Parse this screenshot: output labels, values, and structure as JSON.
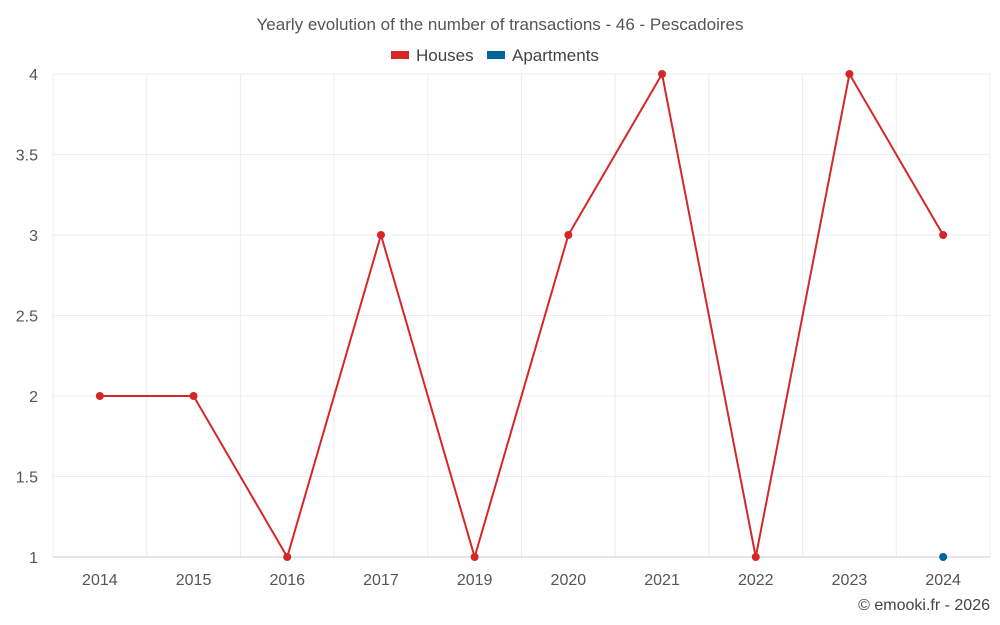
{
  "chart_data": {
    "type": "line",
    "title": "Yearly evolution of the number of transactions - 46 - Pescadoires",
    "x": [
      "2014",
      "2015",
      "2016",
      "2017",
      "2019",
      "2020",
      "2021",
      "2022",
      "2023",
      "2024"
    ],
    "series": [
      {
        "name": "Houses",
        "color": "#d62728",
        "values": [
          2,
          2,
          1,
          3,
          1,
          3,
          4,
          1,
          4,
          3
        ]
      },
      {
        "name": "Apartments",
        "color": "#006699",
        "values": [
          null,
          null,
          null,
          null,
          null,
          null,
          null,
          null,
          null,
          1
        ]
      }
    ],
    "ylim": [
      1,
      4
    ],
    "yticks": [
      "1",
      "1.5",
      "2",
      "2.5",
      "3",
      "3.5",
      "4"
    ],
    "grid": true,
    "legend_position": "top-center"
  },
  "credit": "© emooki.fr - 2026"
}
